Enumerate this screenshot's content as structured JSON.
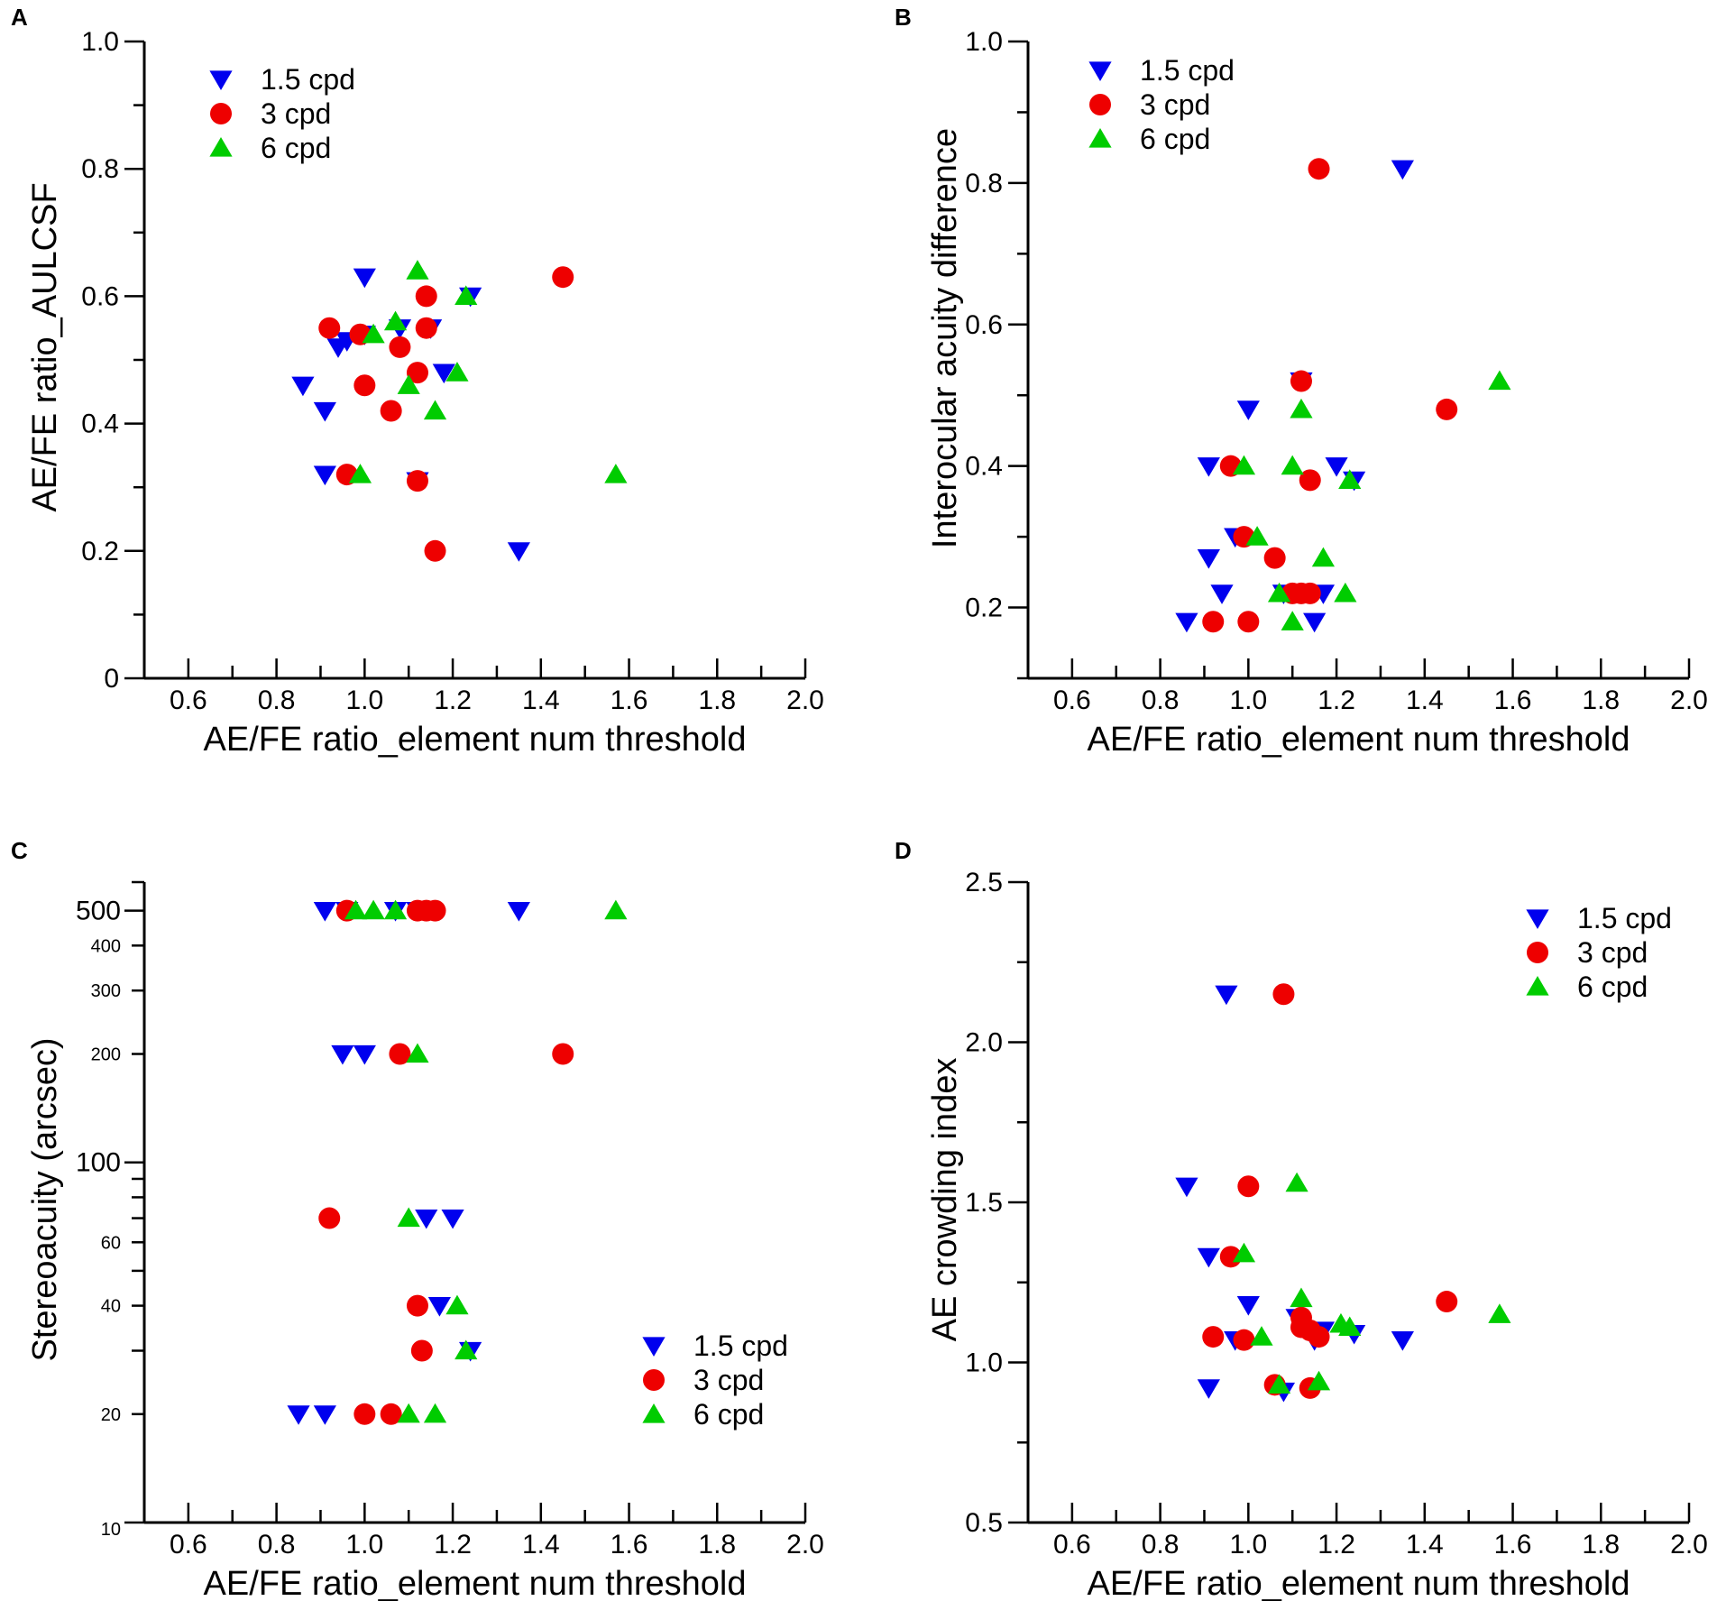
{
  "colors": {
    "cpd_1_5": "#0000ee",
    "cpd_3": "#ee0000",
    "cpd_6": "#00cc00",
    "axis": "#000000"
  },
  "chart_data": [
    {
      "panel": "A",
      "type": "scatter",
      "xlabel": "AE/FE ratio_element num threshold",
      "ylabel": "AE/FE ratio_AULCSF",
      "xlim": [
        0.5,
        2.0
      ],
      "ylim": [
        0,
        1.0
      ],
      "xticks": [
        0.6,
        0.8,
        1.0,
        1.2,
        1.4,
        1.6,
        1.8,
        2.0
      ],
      "xtick_labels": [
        "0.6",
        "0.8",
        "1.0",
        "1.2",
        "1.4",
        "1.6",
        "1.8",
        "2.0"
      ],
      "yticks": [
        0,
        0.2,
        0.4,
        0.6,
        0.8,
        1.0
      ],
      "ytick_labels": [
        "0",
        "0.2",
        "0.4",
        "0.6",
        "0.8",
        "1.0"
      ],
      "legend_position": "top-left",
      "series": [
        {
          "name": "1.5 cpd",
          "marker": "triangle-down",
          "color_key": "cpd_1_5",
          "points": [
            [
              0.86,
              0.46
            ],
            [
              0.91,
              0.42
            ],
            [
              0.91,
              0.32
            ],
            [
              0.94,
              0.52
            ],
            [
              0.96,
              0.53
            ],
            [
              1.0,
              0.63
            ],
            [
              1.0,
              0.54
            ],
            [
              1.08,
              0.55
            ],
            [
              1.12,
              0.31
            ],
            [
              1.15,
              0.55
            ],
            [
              1.18,
              0.48
            ],
            [
              1.24,
              0.6
            ],
            [
              1.35,
              0.2
            ]
          ]
        },
        {
          "name": "3 cpd",
          "marker": "circle",
          "color_key": "cpd_3",
          "points": [
            [
              0.92,
              0.55
            ],
            [
              0.96,
              0.32
            ],
            [
              0.99,
              0.54
            ],
            [
              1.0,
              0.46
            ],
            [
              1.06,
              0.42
            ],
            [
              1.08,
              0.52
            ],
            [
              1.12,
              0.48
            ],
            [
              1.12,
              0.31
            ],
            [
              1.14,
              0.6
            ],
            [
              1.14,
              0.55
            ],
            [
              1.16,
              0.2
            ],
            [
              1.45,
              0.63
            ]
          ]
        },
        {
          "name": "6 cpd",
          "marker": "triangle-up",
          "color_key": "cpd_6",
          "points": [
            [
              0.99,
              0.32
            ],
            [
              1.02,
              0.54
            ],
            [
              1.07,
              0.56
            ],
            [
              1.1,
              0.46
            ],
            [
              1.12,
              0.64
            ],
            [
              1.16,
              0.42
            ],
            [
              1.21,
              0.48
            ],
            [
              1.23,
              0.6
            ],
            [
              1.57,
              0.32
            ]
          ]
        }
      ]
    },
    {
      "panel": "B",
      "type": "scatter",
      "xlabel": "AE/FE ratio_element num threshold",
      "ylabel": "Interocular acuity difference",
      "xlim": [
        0.5,
        2.0
      ],
      "ylim": [
        0.1,
        1.0
      ],
      "xticks": [
        0.6,
        0.8,
        1.0,
        1.2,
        1.4,
        1.6,
        1.8,
        2.0
      ],
      "xtick_labels": [
        "0.6",
        "0.8",
        "1.0",
        "1.2",
        "1.4",
        "1.6",
        "1.8",
        "2.0"
      ],
      "yticks": [
        0.2,
        0.4,
        0.6,
        0.8,
        1.0
      ],
      "ytick_labels": [
        "0.2",
        "0.4",
        "0.6",
        "0.8",
        "1.0"
      ],
      "legend_position": "top-left",
      "series": [
        {
          "name": "1.5 cpd",
          "marker": "triangle-down",
          "color_key": "cpd_1_5",
          "points": [
            [
              0.86,
              0.18
            ],
            [
              0.91,
              0.27
            ],
            [
              0.91,
              0.4
            ],
            [
              0.94,
              0.22
            ],
            [
              0.97,
              0.3
            ],
            [
              1.0,
              0.48
            ],
            [
              1.08,
              0.22
            ],
            [
              1.12,
              0.52
            ],
            [
              1.15,
              0.18
            ],
            [
              1.17,
              0.22
            ],
            [
              1.2,
              0.4
            ],
            [
              1.24,
              0.38
            ],
            [
              1.35,
              0.82
            ]
          ]
        },
        {
          "name": "3 cpd",
          "marker": "circle",
          "color_key": "cpd_3",
          "points": [
            [
              0.92,
              0.18
            ],
            [
              0.96,
              0.4
            ],
            [
              0.99,
              0.3
            ],
            [
              1.0,
              0.18
            ],
            [
              1.06,
              0.27
            ],
            [
              1.1,
              0.22
            ],
            [
              1.12,
              0.52
            ],
            [
              1.12,
              0.22
            ],
            [
              1.14,
              0.38
            ],
            [
              1.14,
              0.22
            ],
            [
              1.16,
              0.82
            ],
            [
              1.45,
              0.48
            ]
          ]
        },
        {
          "name": "6 cpd",
          "marker": "triangle-up",
          "color_key": "cpd_6",
          "points": [
            [
              0.99,
              0.4
            ],
            [
              1.02,
              0.3
            ],
            [
              1.07,
              0.22
            ],
            [
              1.1,
              0.4
            ],
            [
              1.1,
              0.18
            ],
            [
              1.12,
              0.48
            ],
            [
              1.17,
              0.27
            ],
            [
              1.22,
              0.22
            ],
            [
              1.23,
              0.38
            ],
            [
              1.57,
              0.52
            ]
          ]
        }
      ]
    },
    {
      "panel": "C",
      "type": "scatter",
      "yscale": "log",
      "xlabel": "AE/FE ratio_element num threshold",
      "ylabel": "Stereoacuity (arcsec)",
      "xlim": [
        0.5,
        2.0
      ],
      "ylim": [
        10,
        600
      ],
      "xticks": [
        0.6,
        0.8,
        1.0,
        1.2,
        1.4,
        1.6,
        1.8,
        2.0
      ],
      "xtick_labels": [
        "0.6",
        "0.8",
        "1.0",
        "1.2",
        "1.4",
        "1.6",
        "1.8",
        "2.0"
      ],
      "major_yticks": [
        10,
        100,
        500
      ],
      "major_ytick_labels": [
        "10",
        "100",
        "500"
      ],
      "minor_yticks": [
        20,
        30,
        40,
        50,
        60,
        70,
        80,
        90,
        200,
        300,
        400
      ],
      "minor_ytick_labels": [
        "20",
        "",
        "40",
        "",
        "60",
        "",
        "",
        "",
        "200",
        "300",
        "400"
      ],
      "legend_position": "bottom-right",
      "series": [
        {
          "name": "1.5 cpd",
          "marker": "triangle-down",
          "color_key": "cpd_1_5",
          "points": [
            [
              0.85,
              20
            ],
            [
              0.91,
              20
            ],
            [
              0.91,
              500
            ],
            [
              0.95,
              200
            ],
            [
              0.96,
              500
            ],
            [
              1.0,
              200
            ],
            [
              1.07,
              500
            ],
            [
              1.12,
              500
            ],
            [
              1.14,
              70
            ],
            [
              1.17,
              40
            ],
            [
              1.2,
              70
            ],
            [
              1.24,
              30
            ],
            [
              1.35,
              500
            ]
          ]
        },
        {
          "name": "3 cpd",
          "marker": "circle",
          "color_key": "cpd_3",
          "points": [
            [
              0.92,
              70
            ],
            [
              0.96,
              500
            ],
            [
              1.0,
              20
            ],
            [
              1.06,
              20
            ],
            [
              1.08,
              200
            ],
            [
              1.12,
              40
            ],
            [
              1.12,
              500
            ],
            [
              1.13,
              30
            ],
            [
              1.14,
              500
            ],
            [
              1.16,
              500
            ],
            [
              1.45,
              200
            ]
          ]
        },
        {
          "name": "6 cpd",
          "marker": "triangle-up",
          "color_key": "cpd_6",
          "points": [
            [
              0.98,
              500
            ],
            [
              1.02,
              500
            ],
            [
              1.07,
              500
            ],
            [
              1.1,
              70
            ],
            [
              1.1,
              20
            ],
            [
              1.12,
              200
            ],
            [
              1.16,
              20
            ],
            [
              1.21,
              40
            ],
            [
              1.23,
              30
            ],
            [
              1.57,
              500
            ]
          ]
        }
      ]
    },
    {
      "panel": "D",
      "type": "scatter",
      "xlabel": "AE/FE ratio_element num threshold",
      "ylabel": "AE crowding index",
      "xlim": [
        0.5,
        2.0
      ],
      "ylim": [
        0.5,
        2.5
      ],
      "xticks": [
        0.6,
        0.8,
        1.0,
        1.2,
        1.4,
        1.6,
        1.8,
        2.0
      ],
      "xtick_labels": [
        "0.6",
        "0.8",
        "1.0",
        "1.2",
        "1.4",
        "1.6",
        "1.8",
        "2.0"
      ],
      "yticks": [
        0.5,
        1.0,
        1.5,
        2.0,
        2.5
      ],
      "ytick_labels": [
        "0.5",
        "1.0",
        "1.5",
        "2.0",
        "2.5"
      ],
      "legend_position": "top-right",
      "series": [
        {
          "name": "1.5 cpd",
          "marker": "triangle-down",
          "color_key": "cpd_1_5",
          "points": [
            [
              0.86,
              1.55
            ],
            [
              0.91,
              1.33
            ],
            [
              0.91,
              0.92
            ],
            [
              0.95,
              2.15
            ],
            [
              0.97,
              1.07
            ],
            [
              1.0,
              1.18
            ],
            [
              1.08,
              0.91
            ],
            [
              1.11,
              1.14
            ],
            [
              1.15,
              1.07
            ],
            [
              1.17,
              1.1
            ],
            [
              1.24,
              1.09
            ],
            [
              1.35,
              1.07
            ]
          ]
        },
        {
          "name": "3 cpd",
          "marker": "circle",
          "color_key": "cpd_3",
          "points": [
            [
              0.92,
              1.08
            ],
            [
              0.96,
              1.33
            ],
            [
              0.99,
              1.07
            ],
            [
              1.0,
              1.55
            ],
            [
              1.06,
              0.93
            ],
            [
              1.08,
              2.15
            ],
            [
              1.12,
              1.14
            ],
            [
              1.12,
              1.11
            ],
            [
              1.14,
              0.92
            ],
            [
              1.14,
              1.1
            ],
            [
              1.16,
              1.08
            ],
            [
              1.45,
              1.19
            ]
          ]
        },
        {
          "name": "6 cpd",
          "marker": "triangle-up",
          "color_key": "cpd_6",
          "points": [
            [
              0.99,
              1.34
            ],
            [
              1.03,
              1.08
            ],
            [
              1.07,
              0.93
            ],
            [
              1.11,
              1.56
            ],
            [
              1.12,
              1.2
            ],
            [
              1.16,
              0.94
            ],
            [
              1.21,
              1.12
            ],
            [
              1.23,
              1.11
            ],
            [
              1.57,
              1.15
            ]
          ]
        }
      ]
    }
  ]
}
